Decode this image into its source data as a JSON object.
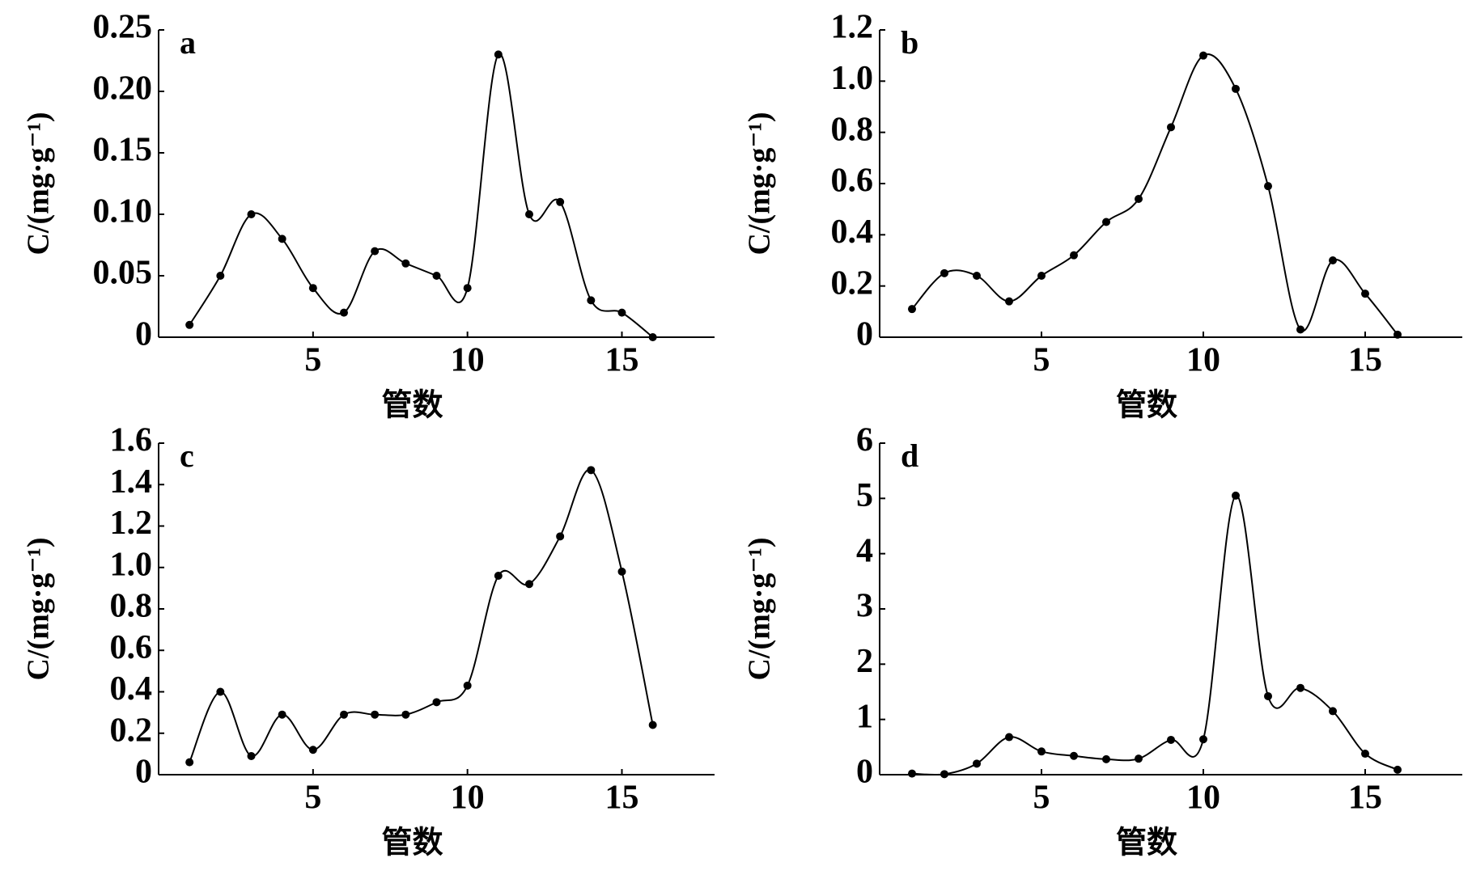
{
  "chart_data": [
    {
      "type": "line",
      "label": "a",
      "xlabel": "管数",
      "ylabel": "C/(mg·g⁻¹)",
      "x": [
        1,
        2,
        3,
        4,
        5,
        6,
        7,
        8,
        9,
        10,
        11,
        12,
        13,
        14,
        15,
        16
      ],
      "values": [
        0.01,
        0.05,
        0.1,
        0.08,
        0.04,
        0.02,
        0.07,
        0.06,
        0.05,
        0.04,
        0.23,
        0.1,
        0.11,
        0.03,
        0.02,
        0.0
      ],
      "color": "#000000",
      "xlim": [
        0,
        18
      ],
      "xticks": [
        5,
        10,
        15
      ],
      "ylim": [
        0,
        0.25
      ],
      "yticks": [
        0,
        0.05,
        {
          "value": 0.1,
          "label": "0.10"
        },
        0.15,
        {
          "value": 0.2,
          "label": "0.20"
        },
        0.25
      ]
    },
    {
      "type": "line",
      "label": "b",
      "xlabel": "管数",
      "ylabel": "C/(mg·g⁻¹)",
      "x": [
        1,
        2,
        3,
        4,
        5,
        6,
        7,
        8,
        9,
        10,
        11,
        12,
        13,
        14,
        15,
        16
      ],
      "values": [
        0.11,
        0.25,
        0.24,
        0.14,
        0.24,
        0.32,
        0.45,
        0.54,
        0.82,
        1.1,
        0.97,
        0.59,
        0.03,
        0.3,
        0.17,
        0.01
      ],
      "color": "#000000",
      "xlim": [
        0,
        18
      ],
      "xticks": [
        5,
        10,
        15
      ],
      "ylim": [
        0,
        1.2
      ],
      "yticks": [
        0,
        0.2,
        0.4,
        0.6,
        0.8,
        {
          "value": 1,
          "label": "1.0"
        },
        1.2
      ]
    },
    {
      "type": "line",
      "label": "c",
      "xlabel": "管数",
      "ylabel": "C/(mg·g⁻¹)",
      "x": [
        1,
        2,
        3,
        4,
        5,
        6,
        7,
        8,
        9,
        10,
        11,
        12,
        13,
        14,
        15,
        16
      ],
      "values": [
        0.06,
        0.4,
        0.09,
        0.29,
        0.12,
        0.29,
        0.29,
        0.29,
        0.35,
        0.43,
        0.96,
        0.92,
        1.15,
        1.47,
        0.98,
        0.24
      ],
      "color": "#000000",
      "xlim": [
        0,
        18
      ],
      "xticks": [
        5,
        10,
        15
      ],
      "ylim": [
        0,
        1.6
      ],
      "yticks": [
        0,
        0.2,
        0.4,
        0.6,
        0.8,
        {
          "value": 1,
          "label": "1.0"
        },
        1.2,
        1.4,
        1.6
      ]
    },
    {
      "type": "line",
      "label": "d",
      "xlabel": "管数",
      "ylabel": "C/(mg·g⁻¹)",
      "x": [
        1,
        2,
        3,
        4,
        5,
        6,
        7,
        8,
        9,
        10,
        11,
        12,
        13,
        14,
        15,
        16
      ],
      "values": [
        0.02,
        0.01,
        0.2,
        0.68,
        0.42,
        0.34,
        0.28,
        0.29,
        0.63,
        0.64,
        5.05,
        1.42,
        1.57,
        1.15,
        0.38,
        0.09
      ],
      "color": "#000000",
      "xlim": [
        0,
        18
      ],
      "xticks": [
        5,
        10,
        15
      ],
      "ylim": [
        0,
        6
      ],
      "yticks": [
        0,
        1,
        2,
        3,
        4,
        5,
        6
      ]
    }
  ]
}
